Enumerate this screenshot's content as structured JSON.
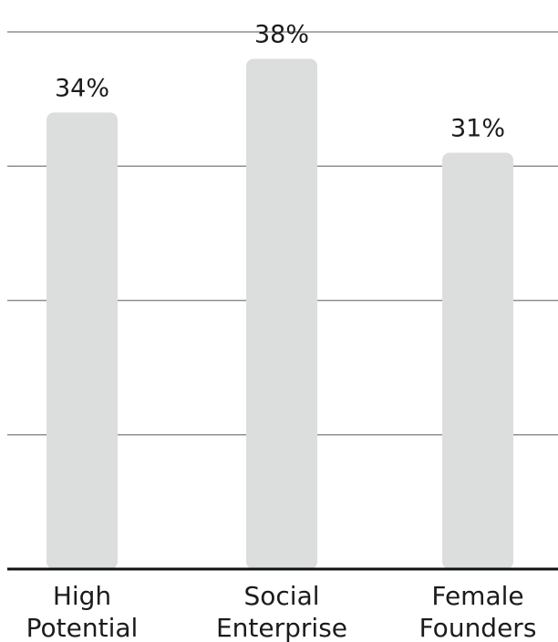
{
  "chart_data": {
    "type": "bar",
    "categories": [
      "High Potential",
      "Social Enterprise",
      "Female Founders"
    ],
    "category_lines": [
      [
        "High",
        "Potential"
      ],
      [
        "Social",
        "Enterprise"
      ],
      [
        "Female",
        "Founders"
      ]
    ],
    "values": [
      34,
      38,
      31
    ],
    "value_labels": [
      "34%",
      "38%",
      "31%"
    ],
    "ylim": [
      0,
      40
    ],
    "gridlines": [
      10,
      20,
      30,
      40
    ],
    "grid": true,
    "bar_color": "#dcdedd",
    "gridline_color": "#8f8f8f",
    "baseline_color": "#111111",
    "text_color": "#1b1b1b"
  }
}
